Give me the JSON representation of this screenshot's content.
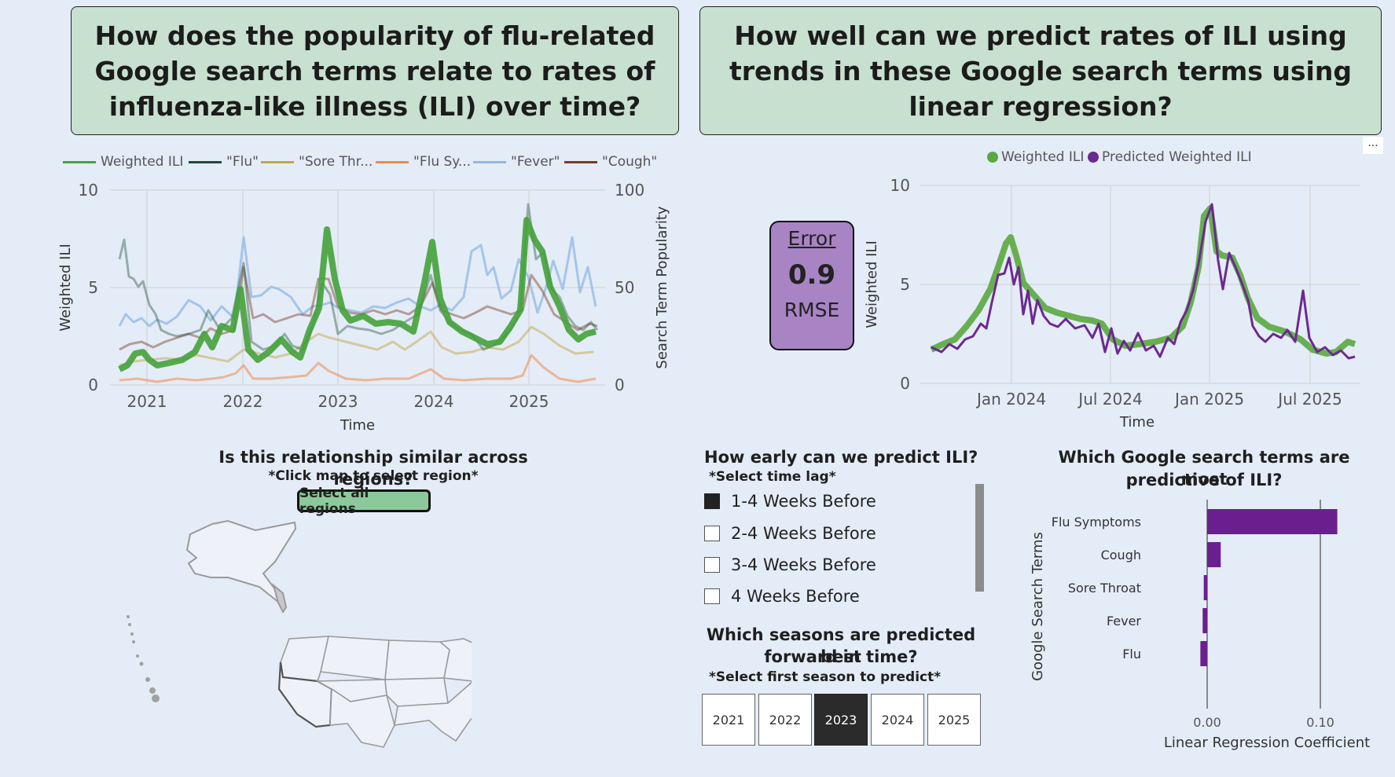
{
  "questions": {
    "left": "How does the popularity of flu-related Google search terms relate to rates of influenza-like illness (ILI) over time?",
    "right": "How well can we predict rates of ILI using trends in these Google search terms using linear regression?"
  },
  "more_options_glyph": "...",
  "trends_chart": {
    "legend": [
      "Weighted ILI",
      "\"Flu\"",
      "\"Sore Thr...",
      "\"Flu Sy...",
      "\"Fever\"",
      "\"Cough\""
    ],
    "colors": {
      "ili": "#44a23a",
      "flu": "#1e4d36",
      "sore": "#c4a64a",
      "flusym": "#ef8a4a",
      "fever": "#8fb8e6",
      "cough": "#7d3b22"
    },
    "ylabel_left": "Weighted ILI",
    "ylabel_right": "Search Term Popularity",
    "xlabel": "Time",
    "left_ticks": [
      "10",
      "5",
      "0"
    ],
    "right_ticks": [
      "100",
      "50",
      "0"
    ],
    "x_ticks": [
      "2021",
      "2022",
      "2023",
      "2024",
      "2025"
    ]
  },
  "pred_chart": {
    "legend": [
      "Weighted ILI",
      "Predicted Weighted ILI"
    ],
    "colors": {
      "actual": "#5aa83f",
      "predicted": "#6b2a8f"
    },
    "ylabel": "Weighted ILI",
    "xlabel": "Time",
    "y_ticks": [
      "10",
      "5",
      "0"
    ],
    "x_ticks": [
      "Jan 2024",
      "Jul 2024",
      "Jan 2025",
      "Jul 2025"
    ]
  },
  "error_card": {
    "title": "Error",
    "value": "0.9",
    "unit": "RMSE"
  },
  "regions": {
    "title": "Is this relationship similar across regions?",
    "instruction": "*Click map to select region*",
    "select_all": "Select all regions"
  },
  "lag": {
    "title": "How early can we predict ILI?",
    "instruction": "*Select time lag*",
    "options": [
      {
        "label": "1-4 Weeks Before",
        "checked": true
      },
      {
        "label": "2-4 Weeks Before",
        "checked": false
      },
      {
        "label": "3-4 Weeks Before",
        "checked": false
      },
      {
        "label": "4 Weeks Before",
        "checked": false
      }
    ]
  },
  "seasons": {
    "title_line1": "Which seasons are predicted best",
    "title_line2": "forward in time?",
    "instruction": "*Select first season to predict*",
    "options": [
      "2021",
      "2022",
      "2023",
      "2024",
      "2025"
    ],
    "selected": "2023"
  },
  "coef_chart": {
    "title_line1": "Which Google search terms are most",
    "title_line2": "predictive of ILI?",
    "ylabel": "Google Search Terms",
    "xlabel": "Linear Regression Coefficient",
    "x_ticks": [
      "0.00",
      "0.10"
    ],
    "bar_color": "#6b1f8f",
    "chart_data": {
      "type": "bar",
      "orientation": "horizontal",
      "categories": [
        "Flu Symptoms",
        "Cough",
        "Sore Throat",
        "Fever",
        "Flu"
      ],
      "values": [
        0.115,
        0.012,
        -0.003,
        -0.004,
        -0.006
      ],
      "xlabel": "Linear Regression Coefficient",
      "ylabel": "Google Search Terms",
      "xlim": [
        -0.01,
        0.14
      ]
    }
  }
}
